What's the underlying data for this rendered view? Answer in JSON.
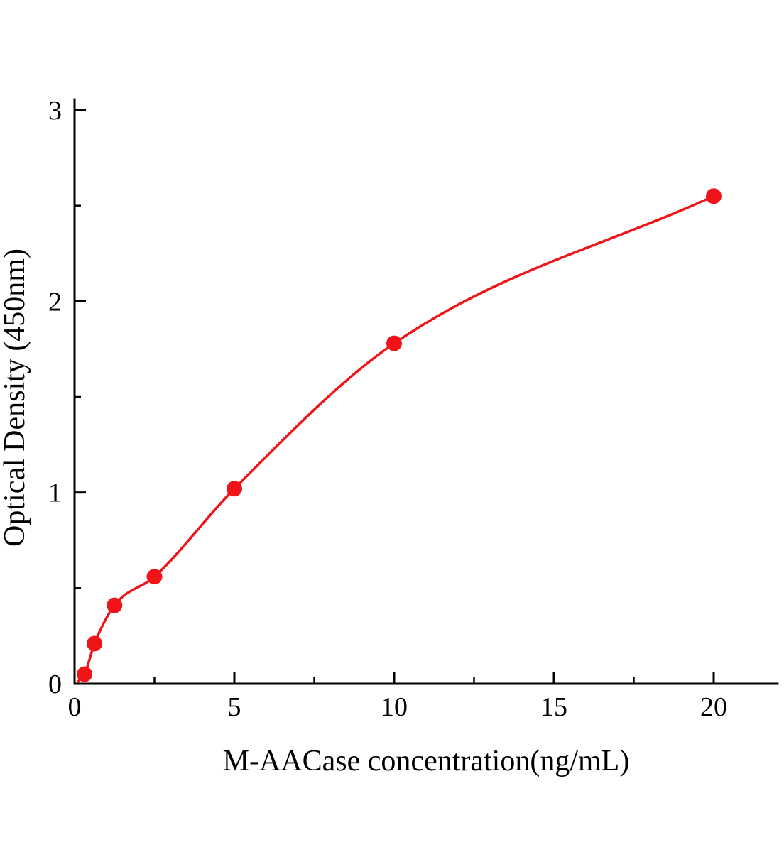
{
  "figure": {
    "background": "#ffffff"
  },
  "chart_data": {
    "type": "scatter",
    "title": "",
    "xlabel": "M-AACase concentration(ng/mL)",
    "ylabel": "Optical Density (450nm)",
    "x": [
      0.313,
      0.625,
      1.25,
      2.5,
      5,
      10,
      20
    ],
    "y": [
      0.05,
      0.21,
      0.41,
      0.56,
      1.02,
      1.78,
      2.55
    ],
    "curve_start": {
      "x": 0.1,
      "y": 0.01
    },
    "xlim": [
      0,
      22
    ],
    "ylim": [
      0,
      3
    ],
    "x_major_ticks": [
      0,
      5,
      10,
      15,
      20
    ],
    "y_major_ticks": [
      0,
      1,
      2,
      3
    ],
    "x_minor_step": 2.5,
    "y_minor_step": 0.5,
    "line_color": "#f01418",
    "marker_color": "#f01418",
    "marker_radius": 11,
    "line_width": 3.5,
    "axis_color": "#000000",
    "axis_width": 3,
    "grid": false,
    "legend": null
  }
}
